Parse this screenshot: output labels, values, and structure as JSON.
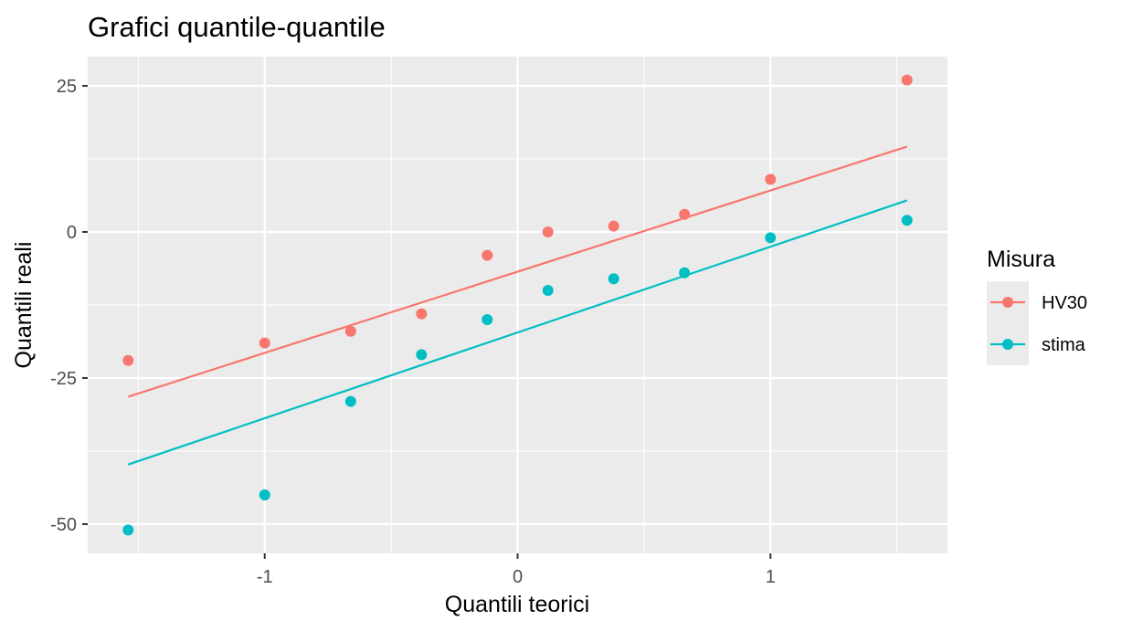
{
  "chart_data": {
    "type": "scatter",
    "title": "Grafici quantile-quantile",
    "xlabel": "Quantili teorici",
    "ylabel": "Quantili reali",
    "xlim": [
      -1.7,
      1.7
    ],
    "ylim": [
      -55,
      30
    ],
    "x_ticks": [
      -1,
      0,
      1
    ],
    "x_tick_labels": [
      "-1",
      "0",
      "1"
    ],
    "y_ticks": [
      -50,
      -25,
      0,
      25
    ],
    "y_tick_labels": [
      "-50",
      "-25",
      "0",
      "25"
    ],
    "grid": true,
    "legend": {
      "title": "Misura",
      "position": "right"
    },
    "series": [
      {
        "name": "HV30",
        "color": "#F8766D",
        "x": [
          -1.54,
          -1.0,
          -0.66,
          -0.38,
          -0.12,
          0.12,
          0.38,
          0.66,
          1.0,
          1.54
        ],
        "y": [
          -22,
          -19,
          -17,
          -14,
          -4,
          0,
          1,
          3,
          9,
          26
        ],
        "line": {
          "x": [
            -1.54,
            1.54
          ],
          "y": [
            -28.2,
            14.6
          ]
        }
      },
      {
        "name": "stima",
        "color": "#00BFC4",
        "x": [
          -1.54,
          -1.0,
          -0.66,
          -0.38,
          -0.12,
          0.12,
          0.38,
          0.66,
          1.0,
          1.54
        ],
        "y": [
          -51,
          -45,
          -29,
          -21,
          -15,
          -10,
          -8,
          -7,
          -1,
          2
        ],
        "line": {
          "x": [
            -1.54,
            1.54
          ],
          "y": [
            -39.8,
            5.4
          ]
        }
      }
    ]
  }
}
